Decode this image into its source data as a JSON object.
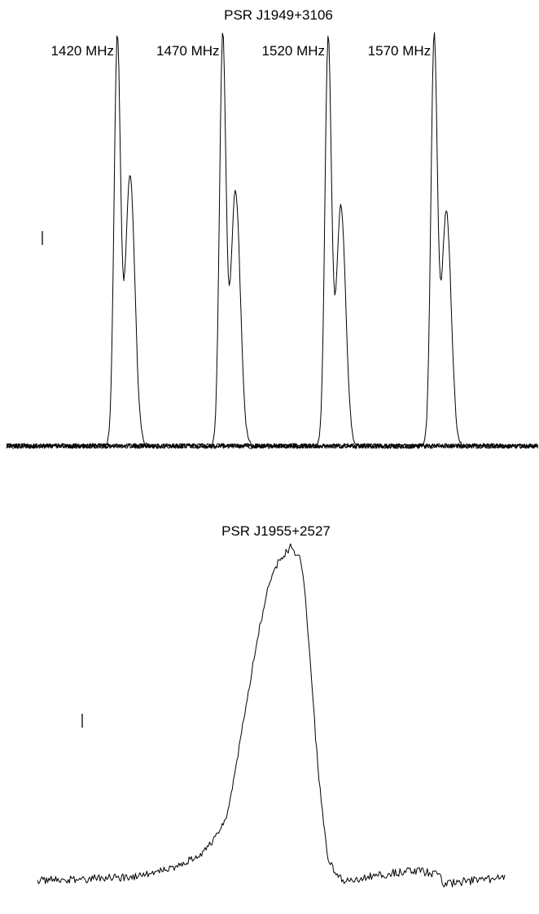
{
  "chart_data": [
    {
      "type": "line",
      "title": "PSR J1949+3106",
      "xlabel": "",
      "ylabel": "",
      "grid": false,
      "note": "Four pulse profiles (one per observing frequency) drawn side by side, each double-peaked; y values are normalized intensity (main peak = 1.0).",
      "x_range": [
        0,
        1
      ],
      "ylim": [
        -0.05,
        1.05
      ],
      "series": [
        {
          "name": "1420 MHz",
          "peak_x": 0.208,
          "peak_y": 1.0,
          "trail_x": 0.232,
          "trail_y": 0.66,
          "saddle_y": 0.28,
          "baseline_y": 0.0
        },
        {
          "name": "1470 MHz",
          "peak_x": 0.406,
          "peak_y": 1.0,
          "trail_x": 0.43,
          "trail_y": 0.62,
          "saddle_y": 0.28,
          "baseline_y": 0.0
        },
        {
          "name": "1520 MHz",
          "peak_x": 0.604,
          "peak_y": 1.0,
          "trail_x": 0.628,
          "trail_y": 0.58,
          "saddle_y": 0.28,
          "baseline_y": 0.0
        },
        {
          "name": "1570 MHz",
          "peak_x": 0.803,
          "peak_y": 1.0,
          "trail_x": 0.826,
          "trail_y": 0.57,
          "saddle_y": 0.28,
          "baseline_y": 0.0
        }
      ],
      "error_bar_present": true
    },
    {
      "type": "line",
      "title": "PSR J1955+2527",
      "xlabel": "",
      "ylabel": "",
      "grid": false,
      "note": "Single broad pulse profile; y values are normalized intensity (peak = 1.0).",
      "x_range": [
        0,
        1
      ],
      "ylim": [
        -0.05,
        1.05
      ],
      "series": [
        {
          "x": [
            0.0,
            0.2,
            0.3,
            0.36,
            0.38,
            0.4,
            0.42,
            0.45,
            0.47,
            0.49,
            0.51,
            0.54,
            0.56,
            0.57,
            0.58,
            0.6,
            0.62,
            0.64,
            0.66,
            0.7,
            0.8,
            0.86,
            0.87,
            0.93,
            1.0
          ],
          "y": [
            0.0,
            0.01,
            0.04,
            0.09,
            0.13,
            0.17,
            0.3,
            0.56,
            0.72,
            0.86,
            0.94,
            1.0,
            0.97,
            0.9,
            0.72,
            0.34,
            0.08,
            0.01,
            0.0,
            0.01,
            0.03,
            0.02,
            -0.01,
            0.0,
            0.01
          ]
        }
      ],
      "error_bar_present": true
    }
  ]
}
